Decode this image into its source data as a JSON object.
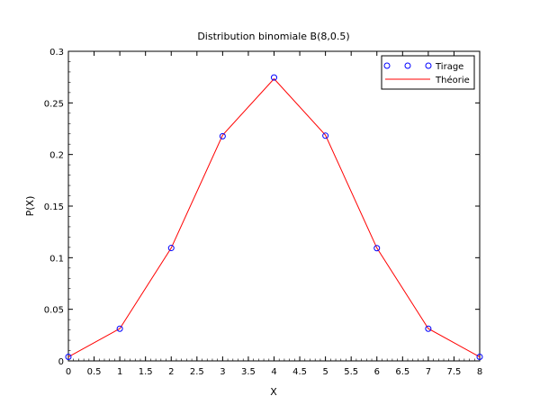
{
  "chart_data": {
    "type": "line",
    "title": "Distribution binomiale B(8,0.5)",
    "xlabel": "X",
    "ylabel": "P(X)",
    "xlim": [
      0,
      8
    ],
    "ylim": [
      0,
      0.3
    ],
    "x_ticks": [
      "0",
      "0.5",
      "1",
      "1.5",
      "2",
      "2.5",
      "3",
      "3.5",
      "4",
      "4.5",
      "5",
      "5.5",
      "6",
      "6.5",
      "7",
      "7.5",
      "8"
    ],
    "y_ticks": [
      "0",
      "0.05",
      "0.1",
      "0.15",
      "0.2",
      "0.25",
      "0.3"
    ],
    "grid": false,
    "legend_position": "top-right",
    "series": [
      {
        "name": "Tirage",
        "kind": "scatter",
        "marker": "circle",
        "color": "#0000ff",
        "x": [
          0,
          1,
          2,
          3,
          4,
          5,
          6,
          7,
          8
        ],
        "values": [
          0.0039,
          0.0312,
          0.1094,
          0.2177,
          0.2746,
          0.2182,
          0.1092,
          0.0312,
          0.0039
        ]
      },
      {
        "name": "Théorie",
        "kind": "line",
        "color": "#ff0000",
        "x": [
          0,
          1,
          2,
          3,
          4,
          5,
          6,
          7,
          8
        ],
        "values": [
          0.0039,
          0.0313,
          0.1094,
          0.2188,
          0.2734,
          0.2188,
          0.1094,
          0.0313,
          0.0039
        ]
      }
    ]
  }
}
